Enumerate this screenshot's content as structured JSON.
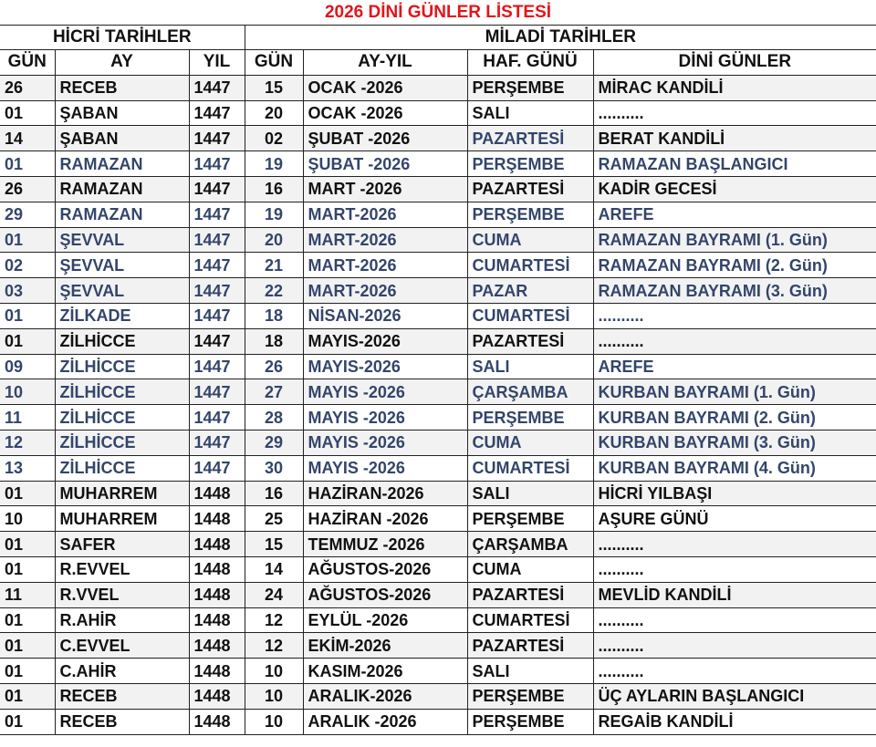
{
  "title": "2026 DİNİ GÜNLER LİSTESİ",
  "groups": {
    "hicri": "HİCRİ TARİHLER",
    "miladi": "MİLADİ TARİHLER"
  },
  "headers": [
    "GÜN",
    "AY",
    "YIL",
    "GÜN",
    "AY-YIL",
    "HAF. GÜNÜ",
    "DİNİ GÜNLER"
  ],
  "colors": {
    "title": "#e3151a",
    "text": "#111111",
    "highlight": "#34456b"
  },
  "rows": [
    {
      "cells": [
        "26",
        "RECEB",
        "1447",
        "15",
        "OCAK -2026",
        "PERŞEMBE",
        "MİRAC KANDİLİ"
      ],
      "blue": false
    },
    {
      "cells": [
        "01",
        "ŞABAN",
        "1447",
        "20",
        "OCAK -2026",
        "SALI",
        ".........."
      ],
      "blue": false
    },
    {
      "cells": [
        "14",
        "ŞABAN",
        "1447",
        "02",
        "ŞUBAT -2026",
        "PAZARTESİ",
        "BERAT KANDİLİ"
      ],
      "blue": false
    },
    {
      "cells": [
        "01",
        "RAMAZAN",
        "1447",
        "19",
        "ŞUBAT -2026",
        "PERŞEMBE",
        "RAMAZAN BAŞLANGICI"
      ],
      "blue": true
    },
    {
      "cells": [
        "26",
        "RAMAZAN",
        "1447",
        "16",
        "MART -2026",
        "PAZARTESİ",
        "KADİR GECESİ"
      ],
      "blue": false
    },
    {
      "cells": [
        "29",
        "RAMAZAN",
        "1447",
        "19",
        "MART-2026",
        "PERŞEMBE",
        "AREFE"
      ],
      "blue": true
    },
    {
      "cells": [
        "01",
        "ŞEVVAL",
        "1447",
        "20",
        "MART-2026",
        "CUMA",
        "RAMAZAN BAYRAMI (1. Gün)"
      ],
      "blue": true
    },
    {
      "cells": [
        "02",
        "ŞEVVAL",
        "1447",
        "21",
        "MART-2026",
        "CUMARTESİ",
        "RAMAZAN BAYRAMI (2. Gün)"
      ],
      "blue": true
    },
    {
      "cells": [
        "03",
        "ŞEVVAL",
        "1447",
        "22",
        "MART-2026",
        "PAZAR",
        "RAMAZAN BAYRAMI (3. Gün)"
      ],
      "blue": true
    },
    {
      "cells": [
        "01",
        "ZİLKADE",
        "1447",
        "18",
        "NİSAN-2026",
        "CUMARTESİ",
        ".........."
      ],
      "blue": true
    },
    {
      "cells": [
        "01",
        "ZİLHİCCE",
        "1447",
        "18",
        "MAYIS-2026",
        "PAZARTESİ",
        ".........."
      ],
      "blue": false
    },
    {
      "cells": [
        "09",
        "ZİLHİCCE",
        "1447",
        "26",
        "MAYIS-2026",
        "SALI",
        "AREFE"
      ],
      "blue": true
    },
    {
      "cells": [
        "10",
        "ZİLHİCCE",
        "1447",
        "27",
        "MAYIS -2026",
        "ÇARŞAMBA",
        "KURBAN BAYRAMI (1. Gün)"
      ],
      "blue": true
    },
    {
      "cells": [
        "11",
        "ZİLHİCCE",
        "1447",
        "28",
        "MAYIS -2026",
        "PERŞEMBE",
        "KURBAN BAYRAMI (2. Gün)"
      ],
      "blue": true
    },
    {
      "cells": [
        "12",
        "ZİLHİCCE",
        "1447",
        "29",
        "MAYIS -2026",
        "CUMA",
        "KURBAN BAYRAMI (3. Gün)"
      ],
      "blue": true
    },
    {
      "cells": [
        "13",
        "ZİLHİCCE",
        "1447",
        "30",
        "MAYIS -2026",
        "CUMARTESİ",
        "KURBAN BAYRAMI (4. Gün)"
      ],
      "blue": true
    },
    {
      "cells": [
        "01",
        "MUHARREM",
        "1448",
        "16",
        "HAZİRAN-2026",
        "SALI",
        "HİCRİ YILBAŞI"
      ],
      "blue": false
    },
    {
      "cells": [
        "10",
        "MUHARREM",
        "1448",
        "25",
        "HAZİRAN -2026",
        "PERŞEMBE",
        "AŞURE GÜNÜ"
      ],
      "blue": false
    },
    {
      "cells": [
        "01",
        "SAFER",
        "1448",
        "15",
        "TEMMUZ -2026",
        "ÇARŞAMBA",
        ".........."
      ],
      "blue": false
    },
    {
      "cells": [
        "01",
        "R.EVVEL",
        "1448",
        "14",
        "AĞUSTOS-2026",
        "CUMA",
        ".........."
      ],
      "blue": false
    },
    {
      "cells": [
        "11",
        "R.VVEL",
        "1448",
        "24",
        "AĞUSTOS-2026",
        "PAZARTESİ",
        "MEVLİD KANDİLİ"
      ],
      "blue": false
    },
    {
      "cells": [
        "01",
        "R.AHİR",
        "1448",
        "12",
        "EYLÜL -2026",
        "CUMARTESİ",
        ".........."
      ],
      "blue": false
    },
    {
      "cells": [
        "01",
        "C.EVVEL",
        "1448",
        "12",
        "EKİM-2026",
        "PAZARTESİ",
        ".........."
      ],
      "blue": false
    },
    {
      "cells": [
        "01",
        "C.AHİR",
        "1448",
        "10",
        "KASIM-2026",
        "SALI",
        ".........."
      ],
      "blue": false
    },
    {
      "cells": [
        "01",
        "RECEB",
        "1448",
        "10",
        "ARALIK-2026",
        "PERŞEMBE",
        "ÜÇ AYLARIN BAŞLANGICI"
      ],
      "blue": false
    },
    {
      "cells": [
        "01",
        "RECEB",
        "1448",
        "10",
        "ARALIK -2026",
        "PERŞEMBE",
        "REGAİB KANDİLİ"
      ],
      "blue": false
    }
  ]
}
